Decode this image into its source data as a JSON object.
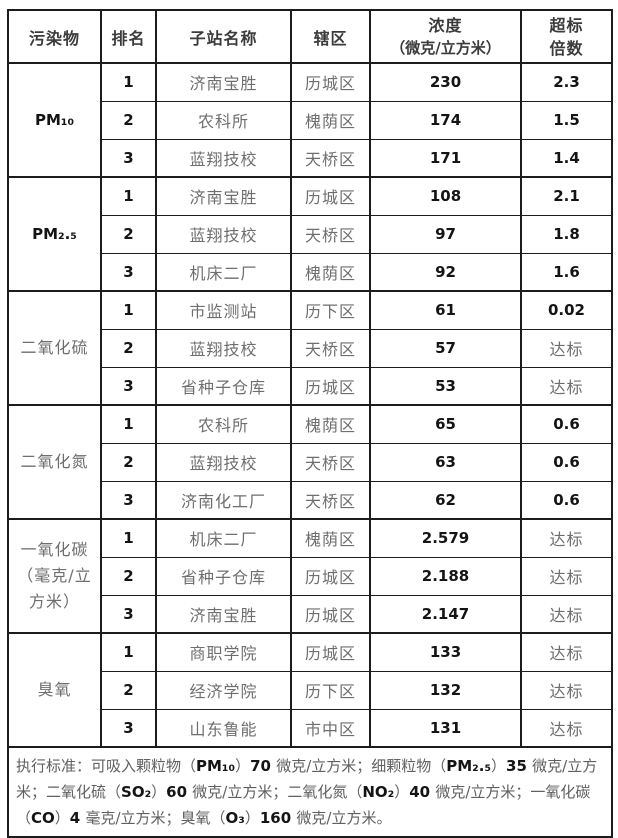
{
  "table": {
    "headers": {
      "pollutant": "污染物",
      "rank": "排名",
      "station": "子站名称",
      "district": "辖区",
      "concentration_line1": "浓度",
      "concentration_line2": "（微克/立方米）",
      "exceedance_line1": "超标",
      "exceedance_line2": "倍数"
    },
    "groups": [
      {
        "pollutant": "PM₁₀",
        "rows": [
          {
            "rank": "1",
            "station": "济南宝胜",
            "district": "历城区",
            "concentration": "230",
            "exceedance": "2.3"
          },
          {
            "rank": "2",
            "station": "农科所",
            "district": "槐荫区",
            "concentration": "174",
            "exceedance": "1.5"
          },
          {
            "rank": "3",
            "station": "蓝翔技校",
            "district": "天桥区",
            "concentration": "171",
            "exceedance": "1.4"
          }
        ]
      },
      {
        "pollutant": "PM₂.₅",
        "rows": [
          {
            "rank": "1",
            "station": "济南宝胜",
            "district": "历城区",
            "concentration": "108",
            "exceedance": "2.1"
          },
          {
            "rank": "2",
            "station": "蓝翔技校",
            "district": "天桥区",
            "concentration": "97",
            "exceedance": "1.8"
          },
          {
            "rank": "3",
            "station": "机床二厂",
            "district": "槐荫区",
            "concentration": "92",
            "exceedance": "1.6"
          }
        ]
      },
      {
        "pollutant": "二氧化硫",
        "rows": [
          {
            "rank": "1",
            "station": "市监测站",
            "district": "历下区",
            "concentration": "61",
            "exceedance": "0.02"
          },
          {
            "rank": "2",
            "station": "蓝翔技校",
            "district": "天桥区",
            "concentration": "57",
            "exceedance": "达标"
          },
          {
            "rank": "3",
            "station": "省种子仓库",
            "district": "历城区",
            "concentration": "53",
            "exceedance": "达标"
          }
        ]
      },
      {
        "pollutant": "二氧化氮",
        "rows": [
          {
            "rank": "1",
            "station": "农科所",
            "district": "槐荫区",
            "concentration": "65",
            "exceedance": "0.6"
          },
          {
            "rank": "2",
            "station": "蓝翔技校",
            "district": "天桥区",
            "concentration": "63",
            "exceedance": "0.6"
          },
          {
            "rank": "3",
            "station": "济南化工厂",
            "district": "天桥区",
            "concentration": "62",
            "exceedance": "0.6"
          }
        ]
      },
      {
        "pollutant": "一氧化碳（毫克/立方米）",
        "rows": [
          {
            "rank": "1",
            "station": "机床二厂",
            "district": "槐荫区",
            "concentration": "2.579",
            "exceedance": "达标"
          },
          {
            "rank": "2",
            "station": "省种子仓库",
            "district": "历城区",
            "concentration": "2.188",
            "exceedance": "达标"
          },
          {
            "rank": "3",
            "station": "济南宝胜",
            "district": "历城区",
            "concentration": "2.147",
            "exceedance": "达标"
          }
        ]
      },
      {
        "pollutant": "臭氧",
        "rows": [
          {
            "rank": "1",
            "station": "商职学院",
            "district": "历城区",
            "concentration": "133",
            "exceedance": "达标"
          },
          {
            "rank": "2",
            "station": "经济学院",
            "district": "历下区",
            "concentration": "132",
            "exceedance": "达标"
          },
          {
            "rank": "3",
            "station": "山东鲁能",
            "district": "市中区",
            "concentration": "131",
            "exceedance": "达标"
          }
        ]
      }
    ],
    "footer_segments": [
      {
        "text": "执行标准：可吸入颗粒物（"
      },
      {
        "text": "PM₁₀"
      },
      {
        "text": "）"
      },
      {
        "text": "70 "
      },
      {
        "text": "微克/立方米；细颗粒物（"
      },
      {
        "text": "PM₂.₅"
      },
      {
        "text": "）"
      },
      {
        "text": "35 "
      },
      {
        "text": "微克/立方米；二氧化硫（"
      },
      {
        "text": "SO₂"
      },
      {
        "text": "）"
      },
      {
        "text": "60 "
      },
      {
        "text": "微克/立方米；二氧化氮（"
      },
      {
        "text": "NO₂"
      },
      {
        "text": "）"
      },
      {
        "text": "40 "
      },
      {
        "text": "微克/立方米；一氧化碳（"
      },
      {
        "text": "CO"
      },
      {
        "text": "）"
      },
      {
        "text": "4 "
      },
      {
        "text": "毫克/立方米；臭氧（"
      },
      {
        "text": "O₃"
      },
      {
        "text": "）"
      },
      {
        "text": "160 "
      },
      {
        "text": "微克/立方米。"
      }
    ]
  }
}
